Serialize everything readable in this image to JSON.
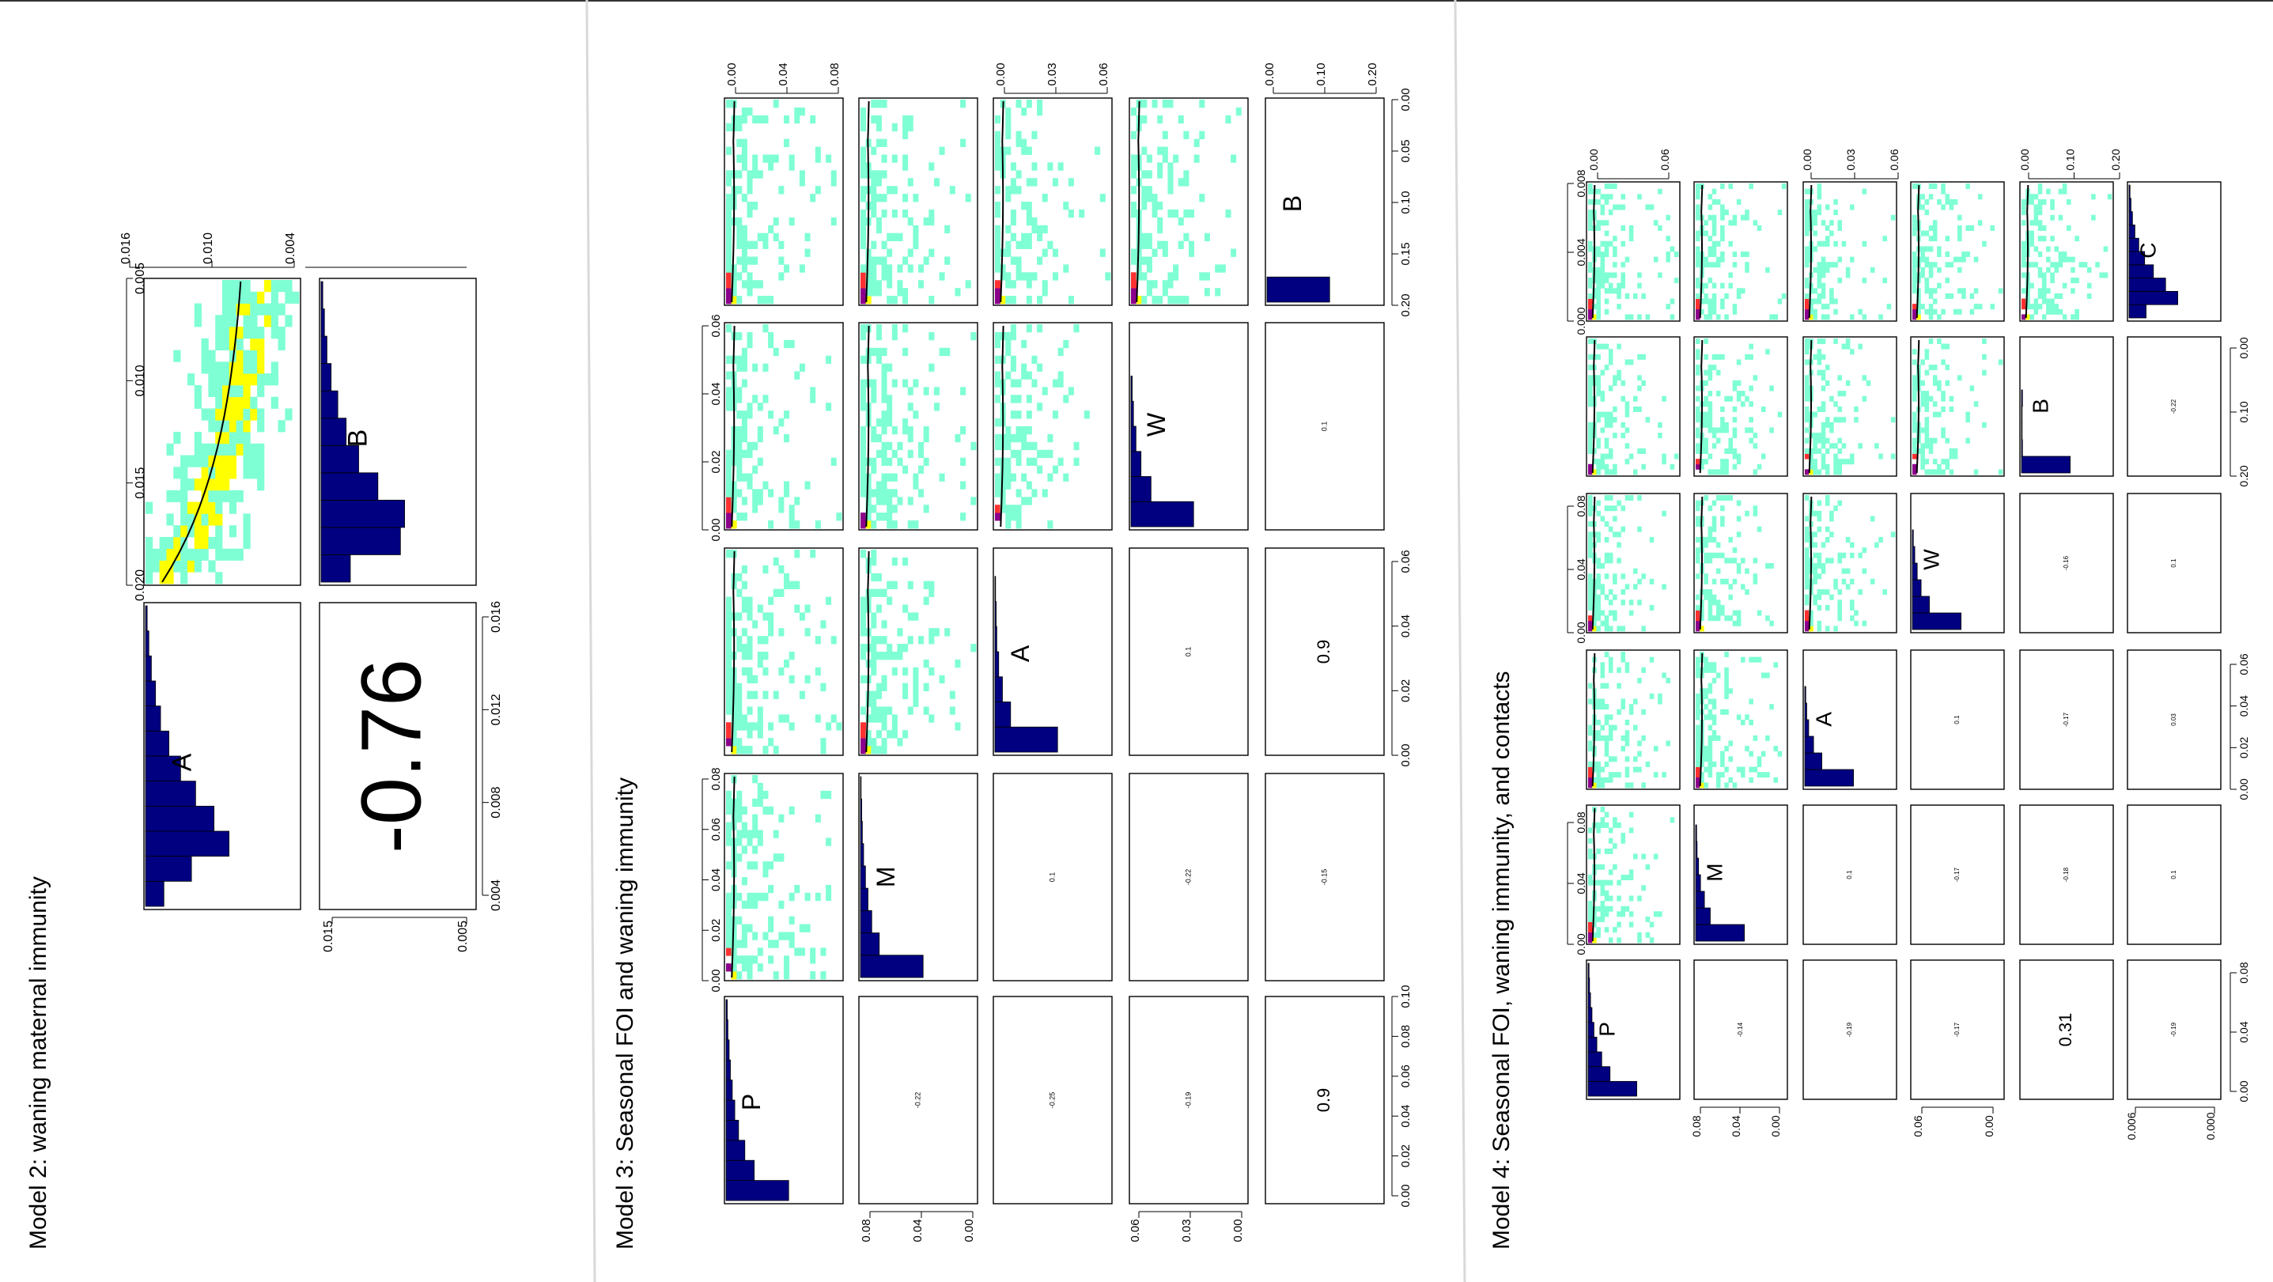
{
  "page": {
    "dividers": [
      "divider-1",
      "divider-2"
    ],
    "colors": {
      "bar": "#000080",
      "density_low": "#7FFFD4",
      "density_mid": "#FFFF00",
      "density_high": "#FF3030",
      "density_peak": "#8B008B"
    }
  },
  "chart_data": [
    {
      "id": "model2",
      "type": "pairs-matrix",
      "title": "Model 2: waning maternal immunity",
      "orientation": "rotated-90-ccw",
      "params": [
        "A",
        "B"
      ],
      "correlations": [
        {
          "pair": [
            "A",
            "B"
          ],
          "value": "-0.76"
        }
      ],
      "histograms": {
        "A": [
          0.22,
          0.55,
          1.0,
          0.82,
          0.6,
          0.42,
          0.28,
          0.18,
          0.12,
          0.07,
          0.04,
          0.02
        ],
        "B": [
          0.35,
          0.95,
          1.0,
          0.68,
          0.45,
          0.3,
          0.2,
          0.12,
          0.07,
          0.04,
          0.02
        ]
      },
      "axes": {
        "A": {
          "ticks": [
            "0.004",
            "0.008",
            "0.012",
            "0.016"
          ],
          "range": [
            0.002,
            0.017
          ]
        },
        "B": {
          "ticks": [
            "0.005",
            "0.010",
            "0.015",
            "0.020"
          ],
          "range": [
            0.002,
            0.021
          ]
        },
        "density_ticks": [
          "0.004",
          "0.010",
          "0.016"
        ],
        "scatter_y_ticks": [
          "0.005",
          "0.015"
        ]
      }
    },
    {
      "id": "model3",
      "type": "pairs-matrix",
      "title": "Model 3: Seasonal FOI and waning immunity",
      "orientation": "rotated-90-ccw",
      "params": [
        "P",
        "M",
        "A",
        "W",
        "B"
      ],
      "correlations": [
        {
          "pair": [
            "P",
            "M"
          ],
          "value": "-0.22"
        },
        {
          "pair": [
            "P",
            "A"
          ],
          "value": "-0.25"
        },
        {
          "pair": [
            "P",
            "W"
          ],
          "value": "-0.19"
        },
        {
          "pair": [
            "P",
            "B"
          ],
          "value": "0.9"
        },
        {
          "pair": [
            "M",
            "A"
          ],
          "value": "0.1"
        },
        {
          "pair": [
            "M",
            "W"
          ],
          "value": "-0.22"
        },
        {
          "pair": [
            "M",
            "B"
          ],
          "value": "-0.15"
        },
        {
          "pair": [
            "A",
            "W"
          ],
          "value": "0.1"
        },
        {
          "pair": [
            "A",
            "B"
          ],
          "value": "0.9"
        },
        {
          "pair": [
            "W",
            "B"
          ],
          "value": "0.1"
        }
      ],
      "histograms": {
        "P": [
          1.0,
          0.45,
          0.3,
          0.2,
          0.14,
          0.1,
          0.07,
          0.05,
          0.03,
          0.02
        ],
        "M": [
          1.0,
          0.3,
          0.18,
          0.12,
          0.08,
          0.05,
          0.03,
          0.02,
          0.01
        ],
        "A": [
          1.0,
          0.25,
          0.12,
          0.06,
          0.03,
          0.02,
          0.01
        ],
        "W": [
          1.0,
          0.32,
          0.16,
          0.08,
          0.04,
          0.02
        ],
        "B": [
          1.0
        ]
      },
      "axes": {
        "P": [
          "0.00",
          "0.02",
          "0.04",
          "0.06",
          "0.08",
          "0.10"
        ],
        "M": [
          "0.00",
          "0.02",
          "0.04",
          "0.06",
          "0.08"
        ],
        "A": [
          "0.00",
          "0.02",
          "0.04",
          "0.06"
        ],
        "W": [
          "0.00",
          "0.02",
          "0.04",
          "0.06"
        ],
        "B": [
          "0.00",
          "0.05",
          "0.10",
          "0.15",
          "0.20"
        ],
        "density_ticks": [
          "0.00",
          "0.04",
          "0.08"
        ],
        "scatter_ticks": {
          "M": [
            "0.00",
            "0.04",
            "0.08"
          ],
          "A": [
            "0.00",
            "0.03",
            "0.06"
          ],
          "W": [
            "0.00",
            "0.03",
            "0.06"
          ],
          "B": [
            "0.00",
            "0.10",
            "0.20"
          ]
        }
      }
    },
    {
      "id": "model4",
      "type": "pairs-matrix",
      "title": "Model 4: Seasonal FOI, waning immunity, and contacts",
      "orientation": "rotated-90-ccw",
      "params": [
        "P",
        "M",
        "A",
        "W",
        "B",
        "C"
      ],
      "correlations": [
        {
          "pair": [
            "P",
            "M"
          ],
          "value": "-0.14"
        },
        {
          "pair": [
            "P",
            "A"
          ],
          "value": "-0.19"
        },
        {
          "pair": [
            "P",
            "W"
          ],
          "value": "-0.17"
        },
        {
          "pair": [
            "P",
            "B"
          ],
          "value": "0.31"
        },
        {
          "pair": [
            "P",
            "C"
          ],
          "value": "-0.19"
        },
        {
          "pair": [
            "M",
            "A"
          ],
          "value": "0.1"
        },
        {
          "pair": [
            "M",
            "W"
          ],
          "value": "-0.17"
        },
        {
          "pair": [
            "M",
            "B"
          ],
          "value": "-0.18"
        },
        {
          "pair": [
            "M",
            "C"
          ],
          "value": "0.1"
        },
        {
          "pair": [
            "A",
            "W"
          ],
          "value": "0.1"
        },
        {
          "pair": [
            "A",
            "B"
          ],
          "value": "-0.17"
        },
        {
          "pair": [
            "A",
            "C"
          ],
          "value": "0.03"
        },
        {
          "pair": [
            "W",
            "B"
          ],
          "value": "-0.16"
        },
        {
          "pair": [
            "W",
            "C"
          ],
          "value": "0.1"
        },
        {
          "pair": [
            "B",
            "C"
          ],
          "value": "-0.22"
        }
      ],
      "histograms": {
        "P": [
          1.0,
          0.45,
          0.28,
          0.18,
          0.12,
          0.08,
          0.05,
          0.03,
          0.02
        ],
        "M": [
          1.0,
          0.3,
          0.18,
          0.1,
          0.06,
          0.03,
          0.02
        ],
        "A": [
          1.0,
          0.35,
          0.18,
          0.08,
          0.04,
          0.02
        ],
        "W": [
          1.0,
          0.35,
          0.18,
          0.1,
          0.05,
          0.02
        ],
        "B": [
          1.0,
          0.02,
          0.01,
          0.01,
          0.02
        ],
        "C": [
          0.35,
          1.0,
          0.75,
          0.5,
          0.32,
          0.2,
          0.12,
          0.07,
          0.04,
          0.02
        ]
      },
      "axes": {
        "P": [
          "0.00",
          "0.04",
          "0.08"
        ],
        "M": [
          "0.00",
          "0.04",
          "0.08"
        ],
        "A": [
          "0.00",
          "0.02",
          "0.04",
          "0.06"
        ],
        "W": [
          "0.00",
          "0.04",
          "0.08"
        ],
        "B": [
          "0.00",
          "0.10",
          "0.20"
        ],
        "C": [
          "0.000",
          "0.004",
          "0.008"
        ],
        "scatter_ticks": {
          "M": [
            "0.00",
            "0.04",
            "0.08"
          ],
          "A": [
            "0.00",
            "0.03",
            "0.06"
          ],
          "W": [
            "0.00",
            "0.06"
          ],
          "B": [],
          "C": [
            "0.000",
            "0.006"
          ]
        },
        "density_ticks": {
          "P": [
            "0.00",
            "0.06"
          ],
          "A": [
            "0.00",
            "0.03",
            "0.06"
          ],
          "W": [],
          "B": [
            "0.00",
            "0.10",
            "0.20"
          ]
        }
      }
    }
  ]
}
